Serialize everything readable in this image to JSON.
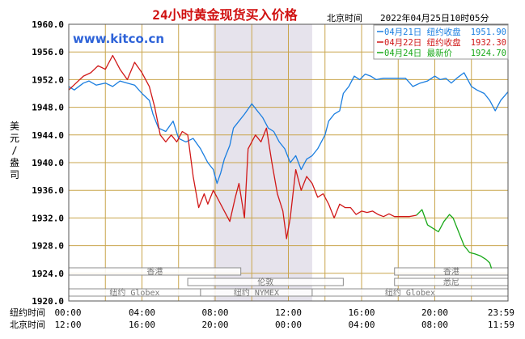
{
  "chart_data": {
    "type": "line",
    "title": "24小时黄金现货买入价格",
    "watermark": "www.kitco.cn",
    "datetime_label": "北京时间",
    "datetime_value": "2022年04月25日10时05分",
    "ylabel": "美元/盎司",
    "ylim": [
      1920,
      1960
    ],
    "yticks": [
      "1960.0",
      "1956.0",
      "1952.0",
      "1948.0",
      "1944.0",
      "1940.0",
      "1936.0",
      "1932.0",
      "1928.0",
      "1924.0",
      "1920.0"
    ],
    "grid": true,
    "legend_position": "top-right",
    "x_hours": [
      0,
      24
    ],
    "xticks_rows": [
      {
        "label": "纽约时间",
        "ticks": [
          "00:00",
          "04:00",
          "08:00",
          "12:00",
          "16:00",
          "20:00",
          "23:59"
        ]
      },
      {
        "label": "北京时间",
        "ticks": [
          "12:00",
          "16:00",
          "20:00",
          "00:00",
          "04:00",
          "08:00",
          "11:59"
        ]
      }
    ],
    "series": [
      {
        "name": "04月21日 纽约收盘",
        "value_label": "1951.90",
        "color": "#1a7ee0",
        "x": [
          0,
          0.3,
          0.8,
          1.1,
          1.5,
          2,
          2.4,
          2.8,
          3.2,
          3.6,
          4,
          4.4,
          4.6,
          4.9,
          5.3,
          5.7,
          6,
          6.4,
          6.8,
          7.2,
          7.6,
          7.9,
          8.1,
          8.3,
          8.5,
          8.8,
          9,
          9.3,
          9.6,
          10,
          10.3,
          10.6,
          10.9,
          11.2,
          11.5,
          11.8,
          12.1,
          12.4,
          12.7,
          13,
          13.3,
          13.6,
          14,
          14.2,
          14.5,
          14.8,
          15,
          15.3,
          15.6,
          15.9,
          16.2,
          16.5,
          16.8,
          17.2,
          17.6,
          18,
          18.4,
          18.8,
          19.2,
          19.6,
          20,
          20.3,
          20.6,
          20.9,
          21.2,
          21.6,
          22,
          22.3,
          22.7,
          23,
          23.3,
          23.6,
          23.99
        ],
        "y": [
          1951,
          1950.5,
          1951.5,
          1951.8,
          1951.2,
          1951.5,
          1951,
          1951.8,
          1951.5,
          1951.2,
          1950,
          1949,
          1947,
          1945,
          1944.5,
          1946,
          1943.5,
          1943,
          1943.5,
          1942,
          1940,
          1939,
          1937,
          1938.5,
          1940.5,
          1942.5,
          1945,
          1946,
          1947,
          1948.5,
          1947.5,
          1946.5,
          1945,
          1944.5,
          1943,
          1942,
          1940,
          1941,
          1939,
          1940.5,
          1941,
          1942,
          1944,
          1946,
          1947,
          1947.5,
          1950,
          1951,
          1952.5,
          1952,
          1952.8,
          1952.5,
          1952,
          1952.2,
          1952.2,
          1952.2,
          1952.2,
          1951,
          1951.5,
          1951.8,
          1952.5,
          1952,
          1952.2,
          1951.5,
          1952.2,
          1953,
          1951,
          1950.5,
          1950,
          1949,
          1947.5,
          1949,
          1950.2
        ]
      },
      {
        "name": "04月22日 纽约收盘",
        "value_label": "1932.30",
        "color": "#d01818",
        "x": [
          0,
          0.4,
          0.8,
          1.2,
          1.6,
          2,
          2.4,
          2.8,
          3.2,
          3.6,
          4,
          4.4,
          4.7,
          5,
          5.3,
          5.6,
          5.9,
          6.2,
          6.5,
          6.8,
          7.1,
          7.4,
          7.6,
          7.9,
          8.2,
          8.5,
          8.8,
          9.1,
          9.3,
          9.6,
          9.8,
          10.2,
          10.5,
          10.8,
          11.1,
          11.4,
          11.7,
          11.9,
          12.1,
          12.4,
          12.7,
          13,
          13.3,
          13.6,
          13.9,
          14.2,
          14.5,
          14.8,
          15.1,
          15.4,
          15.7,
          16,
          16.3,
          16.6,
          16.9,
          17.2,
          17.5,
          17.8,
          18.2,
          18.6,
          19
        ],
        "y": [
          1950.5,
          1951.5,
          1952.5,
          1953,
          1954,
          1953.5,
          1955.5,
          1953.5,
          1952,
          1954.5,
          1953,
          1951,
          1948,
          1944,
          1943,
          1944,
          1943,
          1944.5,
          1944,
          1938,
          1933.5,
          1935.5,
          1934,
          1936,
          1934.5,
          1933,
          1931.5,
          1935,
          1937,
          1932,
          1942,
          1944,
          1943,
          1945,
          1940,
          1935.5,
          1933,
          1929,
          1932,
          1939,
          1936,
          1938,
          1937,
          1935,
          1935.5,
          1934,
          1932,
          1934,
          1933.5,
          1933.5,
          1932.5,
          1933,
          1932.8,
          1933,
          1932.5,
          1932.2,
          1932.6,
          1932.2,
          1932.2,
          1932.2,
          1932.4
        ]
      },
      {
        "name": "04月24日 最新价",
        "value_label": "1924.70",
        "color": "#18a818",
        "x": [
          19,
          19.3,
          19.6,
          19.9,
          20.2,
          20.5,
          20.8,
          21,
          21.3,
          21.6,
          21.9,
          22.2,
          22.5,
          22.8,
          23,
          23.1
        ],
        "y": [
          1932.4,
          1933.2,
          1931,
          1930.5,
          1930,
          1931.5,
          1932.5,
          1932,
          1930,
          1928,
          1927,
          1926.8,
          1926.5,
          1926,
          1925.5,
          1924.7
        ]
      }
    ],
    "annotations": [
      {
        "label": "香港",
        "row": 1,
        "x_start": 0,
        "x_end": 9.4
      },
      {
        "label": "香港",
        "row": 1,
        "x_start": 17.8,
        "x_end": 24
      },
      {
        "label": "伦敦",
        "row": 2,
        "x_start": 6.5,
        "x_end": 15
      },
      {
        "label": "悉尼",
        "row": 2,
        "x_start": 17.8,
        "x_end": 24
      },
      {
        "label": "纽约 Globex",
        "row": 3,
        "x_start": 0,
        "x_end": 7.2
      },
      {
        "label": "纽约 NYMEX",
        "row": 3,
        "x_start": 7.2,
        "x_end": 13.3
      },
      {
        "label": "纽约 Globex",
        "row": 3,
        "x_start": 13.3,
        "x_end": 24
      }
    ],
    "shaded_period": {
      "x_start": 7.9,
      "x_end": 13.3
    }
  }
}
